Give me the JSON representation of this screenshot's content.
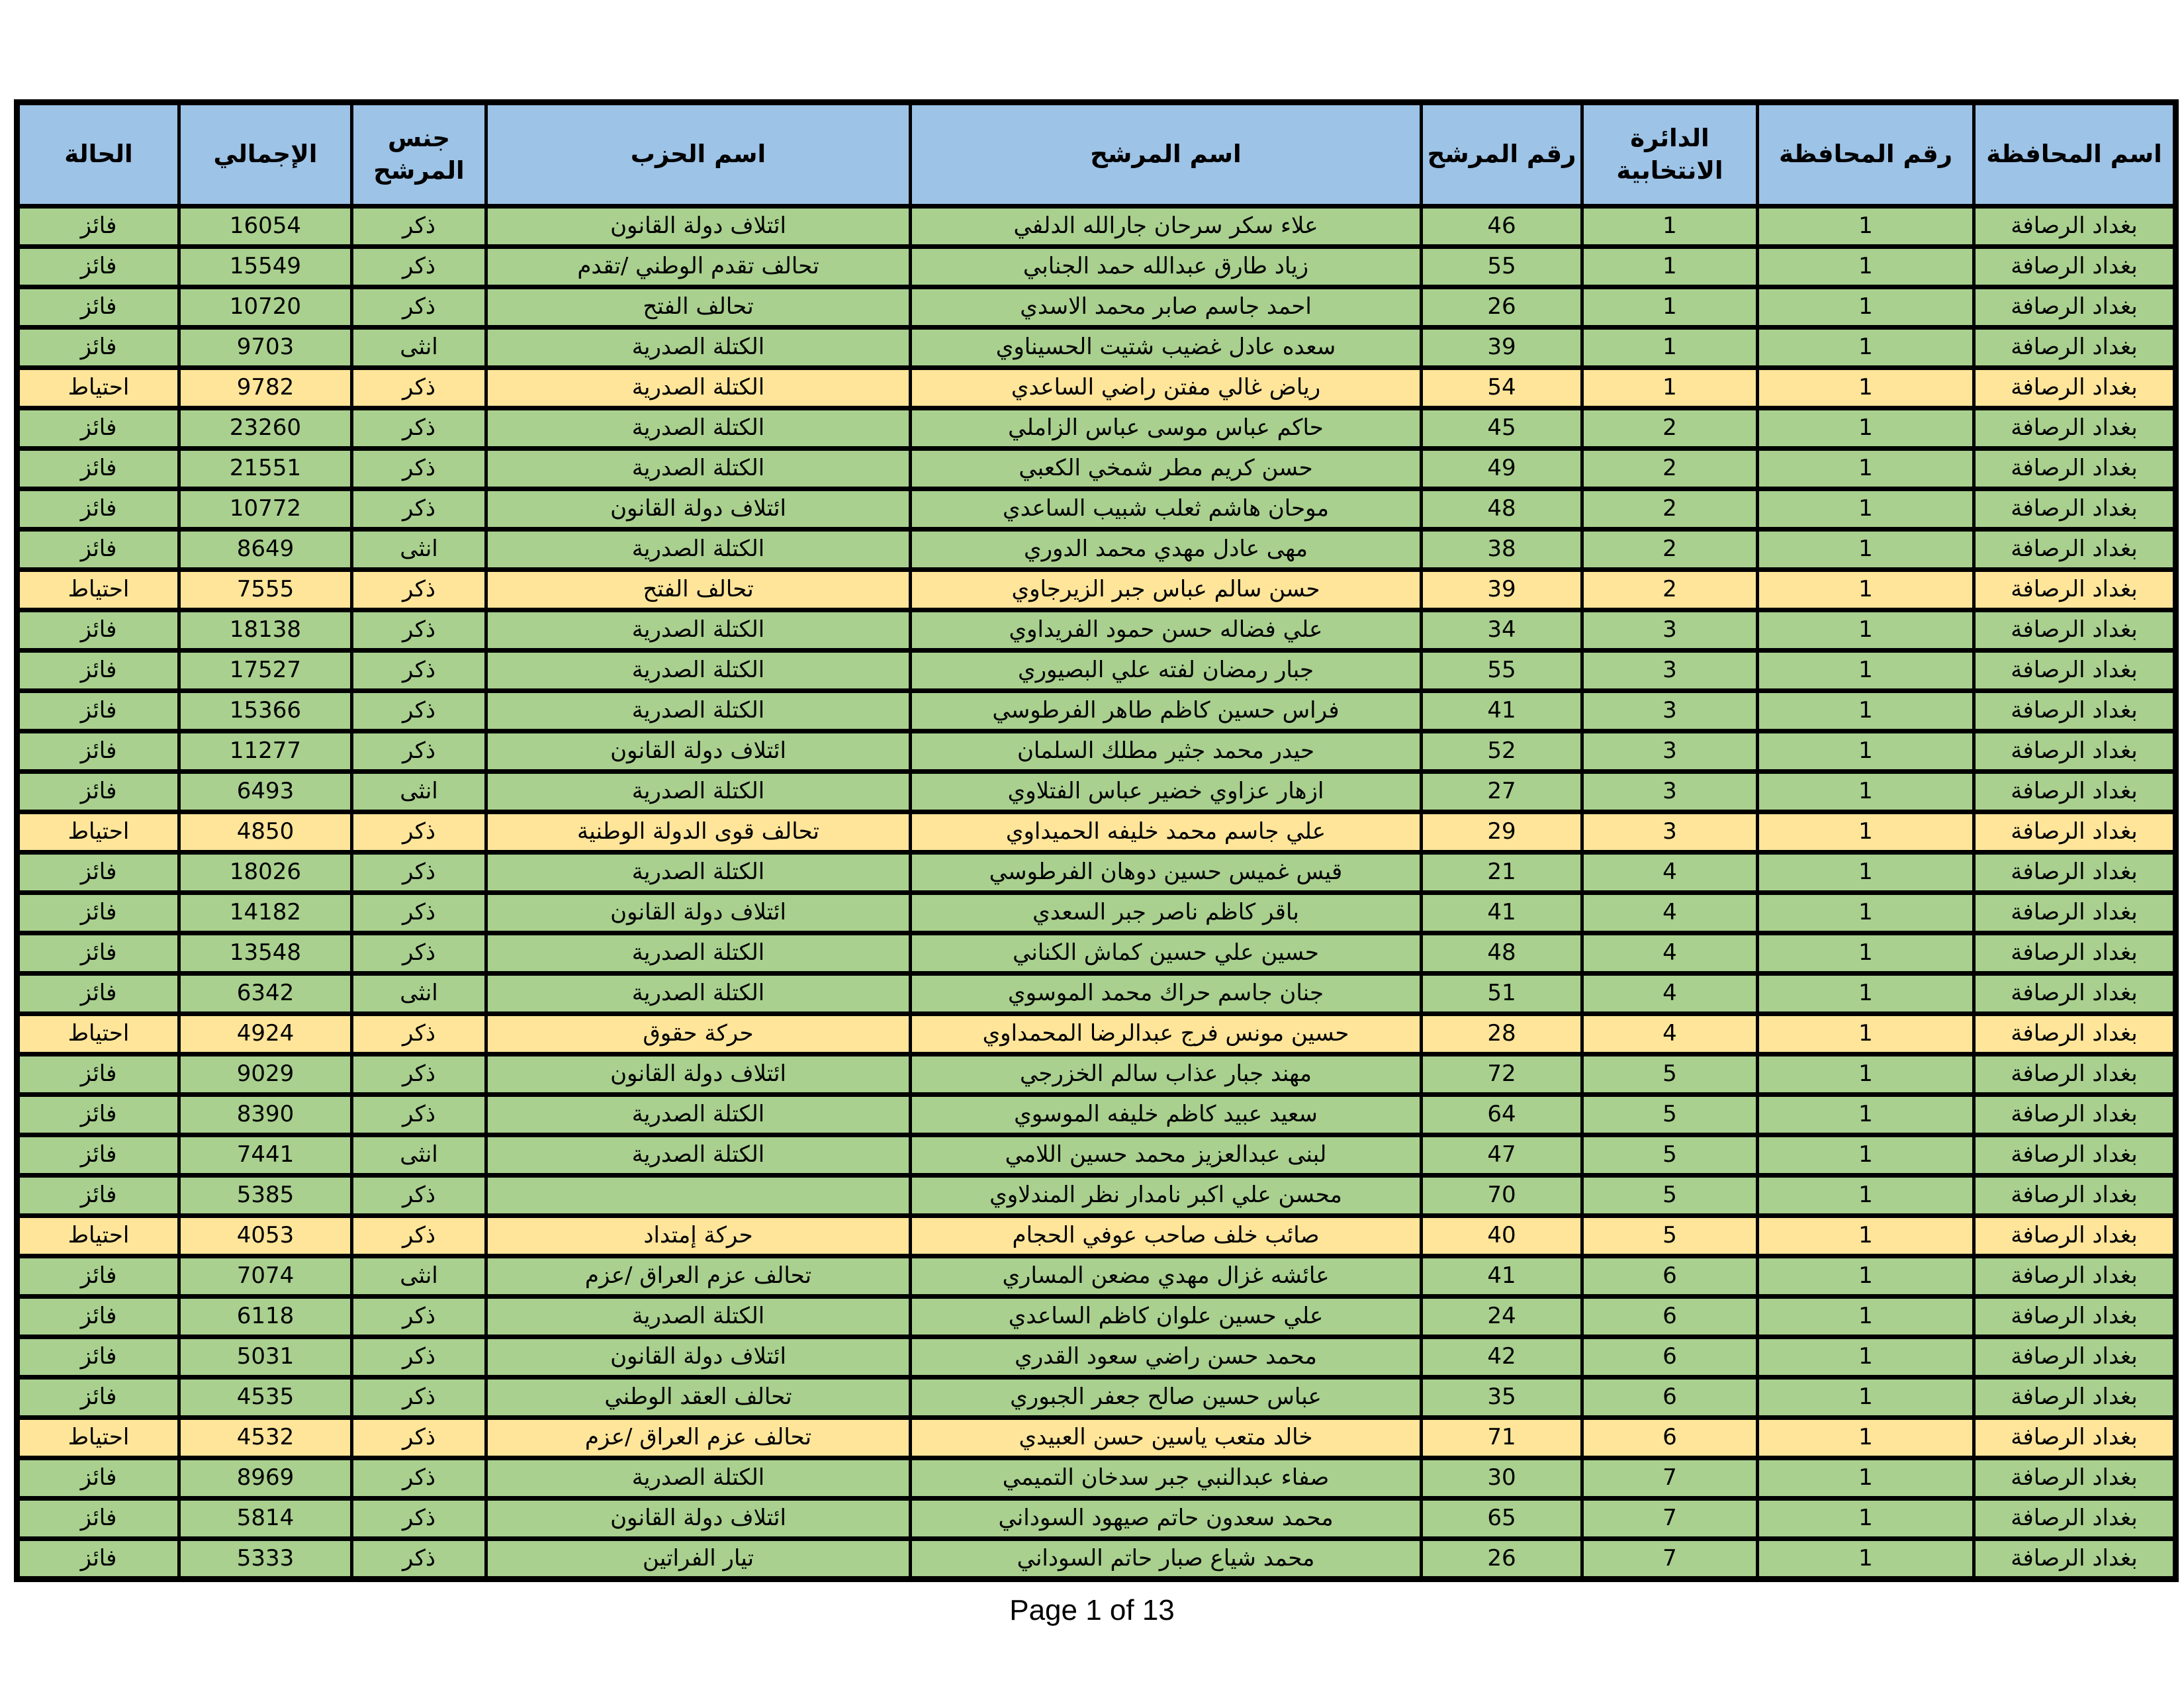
{
  "colors": {
    "header_bg": "#9DC3E6",
    "border": "#000000",
    "status_row_bg": {
      "فائز": "#A9D08E",
      "احتياط": "#FFE599"
    },
    "text": "#000000"
  },
  "table": {
    "headers": [
      {
        "key": "governorate-name",
        "label": "اسم المحافظة"
      },
      {
        "key": "governorate-number",
        "label": "رقم المحافظة"
      },
      {
        "key": "electoral-district",
        "label": "الدائرة\nالانتخابية"
      },
      {
        "key": "candidate-number",
        "label": "رقم المرشح"
      },
      {
        "key": "candidate-name",
        "label": "اسم المرشح"
      },
      {
        "key": "party-name",
        "label": "اسم الحزب"
      },
      {
        "key": "candidate-gender",
        "label": "جنس\nالمرشح"
      },
      {
        "key": "total-votes",
        "label": "الإجمالي"
      },
      {
        "key": "status",
        "label": "الحالة"
      }
    ],
    "rows": [
      [
        "بغداد الرصافة",
        "1",
        "1",
        "46",
        "علاء سكر سرحان جارالله الدلفي",
        "ائتلاف دولة القانون",
        "ذكر",
        "16054",
        "فائز"
      ],
      [
        "بغداد الرصافة",
        "1",
        "1",
        "55",
        "زياد طارق عبدالله حمد الجنابي",
        "تحالف تقدم الوطني /تقدم",
        "ذكر",
        "15549",
        "فائز"
      ],
      [
        "بغداد الرصافة",
        "1",
        "1",
        "26",
        "احمد جاسم صابر محمد الاسدي",
        "تحالف الفتح",
        "ذكر",
        "10720",
        "فائز"
      ],
      [
        "بغداد الرصافة",
        "1",
        "1",
        "39",
        "سعده عادل غضيب شتيت الحسيناوي",
        "الكتلة الصدرية",
        "انثى",
        "9703",
        "فائز"
      ],
      [
        "بغداد الرصافة",
        "1",
        "1",
        "54",
        "رياض غالي مفتن راضي الساعدي",
        "الكتلة الصدرية",
        "ذكر",
        "9782",
        "احتياط"
      ],
      [
        "بغداد الرصافة",
        "1",
        "2",
        "45",
        "حاكم عباس موسى عباس الزاملي",
        "الكتلة الصدرية",
        "ذكر",
        "23260",
        "فائز"
      ],
      [
        "بغداد الرصافة",
        "1",
        "2",
        "49",
        "حسن كريم مطر شمخي الكعبي",
        "الكتلة الصدرية",
        "ذكر",
        "21551",
        "فائز"
      ],
      [
        "بغداد الرصافة",
        "1",
        "2",
        "48",
        "موحان هاشم ثعلب شبيب الساعدي",
        "ائتلاف دولة القانون",
        "ذكر",
        "10772",
        "فائز"
      ],
      [
        "بغداد الرصافة",
        "1",
        "2",
        "38",
        "مهى عادل مهدي محمد الدوري",
        "الكتلة الصدرية",
        "انثى",
        "8649",
        "فائز"
      ],
      [
        "بغداد الرصافة",
        "1",
        "2",
        "39",
        "حسن سالم عباس جبر الزيرجاوي",
        "تحالف الفتح",
        "ذكر",
        "7555",
        "احتياط"
      ],
      [
        "بغداد الرصافة",
        "1",
        "3",
        "34",
        "علي فضاله حسن حمود الفريداوي",
        "الكتلة الصدرية",
        "ذكر",
        "18138",
        "فائز"
      ],
      [
        "بغداد الرصافة",
        "1",
        "3",
        "55",
        "جبار رمضان لفته علي البصيوري",
        "الكتلة الصدرية",
        "ذكر",
        "17527",
        "فائز"
      ],
      [
        "بغداد الرصافة",
        "1",
        "3",
        "41",
        "فراس حسين كاظم طاهر الفرطوسي",
        "الكتلة الصدرية",
        "ذكر",
        "15366",
        "فائز"
      ],
      [
        "بغداد الرصافة",
        "1",
        "3",
        "52",
        "حيدر محمد جثير مطلك السلمان",
        "ائتلاف دولة القانون",
        "ذكر",
        "11277",
        "فائز"
      ],
      [
        "بغداد الرصافة",
        "1",
        "3",
        "27",
        "ازهار عزاوي خضير عباس الفتلاوي",
        "الكتلة الصدرية",
        "انثى",
        "6493",
        "فائز"
      ],
      [
        "بغداد الرصافة",
        "1",
        "3",
        "29",
        "علي جاسم محمد خليفه الحميداوي",
        "تحالف قوى الدولة الوطنية",
        "ذكر",
        "4850",
        "احتياط"
      ],
      [
        "بغداد الرصافة",
        "1",
        "4",
        "21",
        "قيس غميس حسين دوهان الفرطوسي",
        "الكتلة الصدرية",
        "ذكر",
        "18026",
        "فائز"
      ],
      [
        "بغداد الرصافة",
        "1",
        "4",
        "41",
        "باقر كاظم ناصر جبر السعدي",
        "ائتلاف دولة القانون",
        "ذكر",
        "14182",
        "فائز"
      ],
      [
        "بغداد الرصافة",
        "1",
        "4",
        "48",
        "حسين علي حسين كماش الكناني",
        "الكتلة الصدرية",
        "ذكر",
        "13548",
        "فائز"
      ],
      [
        "بغداد الرصافة",
        "1",
        "4",
        "51",
        "جنان جاسم حراك محمد الموسوي",
        "الكتلة الصدرية",
        "انثى",
        "6342",
        "فائز"
      ],
      [
        "بغداد الرصافة",
        "1",
        "4",
        "28",
        "حسين مونس فرج عبدالرضا المحمداوي",
        "حركة حقوق",
        "ذكر",
        "4924",
        "احتياط"
      ],
      [
        "بغداد الرصافة",
        "1",
        "5",
        "72",
        "مهند جبار عذاب سالم الخزرجي",
        "ائتلاف دولة القانون",
        "ذكر",
        "9029",
        "فائز"
      ],
      [
        "بغداد الرصافة",
        "1",
        "5",
        "64",
        "سعيد عبيد كاظم خليفه الموسوي",
        "الكتلة الصدرية",
        "ذكر",
        "8390",
        "فائز"
      ],
      [
        "بغداد الرصافة",
        "1",
        "5",
        "47",
        "لبنى عبدالعزيز محمد حسين اللامي",
        "الكتلة الصدرية",
        "انثى",
        "7441",
        "فائز"
      ],
      [
        "بغداد الرصافة",
        "1",
        "5",
        "70",
        "محسن علي اكبر نامدار نظر المندلاوي",
        "",
        "ذكر",
        "5385",
        "فائز"
      ],
      [
        "بغداد الرصافة",
        "1",
        "5",
        "40",
        "صائب خلف صاحب عوفي الحجام",
        "حركة إمتداد",
        "ذكر",
        "4053",
        "احتياط"
      ],
      [
        "بغداد الرصافة",
        "1",
        "6",
        "41",
        "عائشه غزال مهدي مضعن المساري",
        "تحالف عزم العراق /عزم",
        "انثى",
        "7074",
        "فائز"
      ],
      [
        "بغداد الرصافة",
        "1",
        "6",
        "24",
        "علي حسين علوان كاظم الساعدي",
        "الكتلة الصدرية",
        "ذكر",
        "6118",
        "فائز"
      ],
      [
        "بغداد الرصافة",
        "1",
        "6",
        "42",
        "محمد حسن راضي سعود القدري",
        "ائتلاف دولة القانون",
        "ذكر",
        "5031",
        "فائز"
      ],
      [
        "بغداد الرصافة",
        "1",
        "6",
        "35",
        "عباس حسين صالح جعفر الجبوري",
        "تحالف العقد الوطني",
        "ذكر",
        "4535",
        "فائز"
      ],
      [
        "بغداد الرصافة",
        "1",
        "6",
        "71",
        "خالد متعب ياسين حسن العبيدي",
        "تحالف عزم العراق /عزم",
        "ذكر",
        "4532",
        "احتياط"
      ],
      [
        "بغداد الرصافة",
        "1",
        "7",
        "30",
        "صفاء عبدالنبي جبر سدخان التميمي",
        "الكتلة الصدرية",
        "ذكر",
        "8969",
        "فائز"
      ],
      [
        "بغداد الرصافة",
        "1",
        "7",
        "65",
        "محمد سعدون حاتم صيهود السوداني",
        "ائتلاف دولة القانون",
        "ذكر",
        "5814",
        "فائز"
      ],
      [
        "بغداد الرصافة",
        "1",
        "7",
        "26",
        "محمد شياع صبار حاتم السوداني",
        "تيار الفراتين",
        "ذكر",
        "5333",
        "فائز"
      ]
    ]
  },
  "footer": {
    "text": "Page 1 of 13"
  }
}
